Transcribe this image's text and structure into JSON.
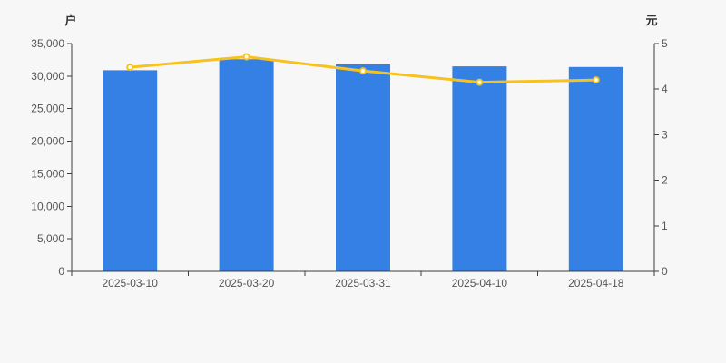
{
  "chart_data": {
    "type": "bar",
    "categories": [
      "2025-03-10",
      "2025-03-20",
      "2025-03-31",
      "2025-04-10",
      "2025-04-18"
    ],
    "series": [
      {
        "name": "bar-series",
        "type": "bar",
        "axis": "left",
        "values": [
          30900,
          32600,
          31800,
          31500,
          31400
        ],
        "color": "#3580e4"
      },
      {
        "name": "line-series",
        "type": "line",
        "axis": "right",
        "values": [
          4.48,
          4.71,
          4.4,
          4.15,
          4.2
        ],
        "color": "#f7c21e",
        "marker_fill": "#ffffff"
      }
    ],
    "title": "",
    "xlabel": "",
    "left_axis": {
      "name": "户",
      "ylim": [
        0,
        35000
      ],
      "interval": 5000,
      "tick_labels": [
        "0",
        "5,000",
        "10,000",
        "15,000",
        "20,000",
        "25,000",
        "30,000",
        "35,000"
      ]
    },
    "right_axis": {
      "name": "元",
      "ylim": [
        0,
        5
      ],
      "interval": 1,
      "tick_labels": [
        "0",
        "1",
        "2",
        "3",
        "4",
        "5"
      ]
    },
    "grid": false,
    "legend": false
  },
  "colors": {
    "background": "#f7f7f7",
    "axis_line": "#3e3e3e",
    "tick_label": "#555555",
    "axis_title": "#333333"
  }
}
